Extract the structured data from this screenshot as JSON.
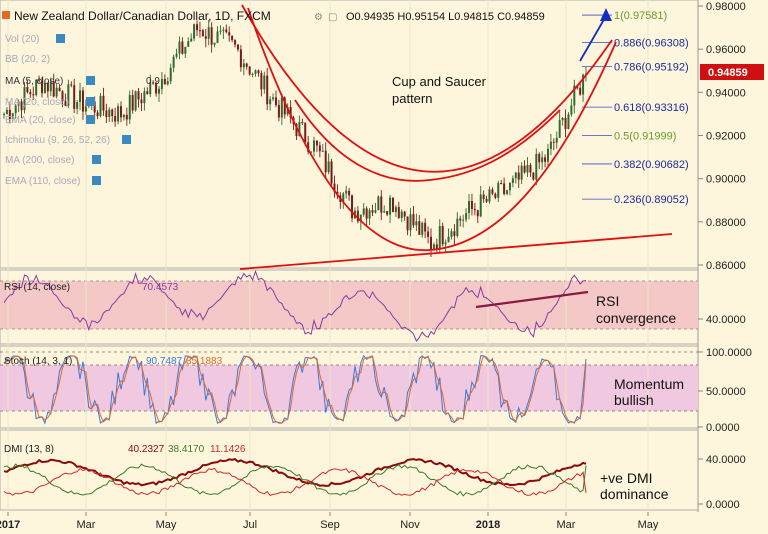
{
  "colors": {
    "background": "#fdf5dc",
    "panel_border": "#9a9a9a",
    "candle_up": "#2f6b2f",
    "candle_down": "#7a1a1a",
    "trendline": "#e01010",
    "fib_text": "#1a2c9a",
    "fib_line": "#3a4cc9",
    "fib_text_alt": "#6a9a2a",
    "arrow": "#1030c0",
    "rsi_band": "#f5c8c8",
    "rsi_line": "#8a3aa0",
    "rsi_trend": "#8a1840",
    "stoch_band": "#f0c8e0",
    "stoch_k": "#3a7adf",
    "stoch_d": "#e06a2a",
    "dmi_adx": "#8a0a0a",
    "dmi_plus": "#3a7a2a",
    "dmi_minus": "#d02a2a",
    "price_tag": "#d01010",
    "icon_box": "#3a8ac0"
  },
  "header": {
    "title": "New Zealand Dollar/Canadian Dollar, 1D, FXCM",
    "ohlc": "O0.94935  H0.95154  L0.94815  C0.94859"
  },
  "legends": {
    "vol": "Vol (20)",
    "bb": "BB (20, 2)",
    "ma5": "MA (5, close)",
    "ma5_value": "0.9",
    "ma20": "MA (20, close)",
    "ema20": "EMA (20, close)",
    "ichimoku": "Ichimoku (9, 26, 52, 26)",
    "ma200": "MA (200, close)",
    "ema110": "EMA (110, close)",
    "rsi": "RSI (14, close)",
    "rsi_value": "70.4573",
    "stoch": "Stoch (14, 3, 1)",
    "stoch_k": "90.7487",
    "stoch_d": "85.1883",
    "dmi": "DMI (13, 8)",
    "dmi_adx": "40.2327",
    "dmi_plus": "38.4170",
    "dmi_minus": "11.1426"
  },
  "annotations": {
    "cup_line1": "Cup and Saucer",
    "cup_line2": "pattern",
    "rsi_line1": "RSI",
    "rsi_line2": "convergence",
    "stoch_line1": "Momentum",
    "stoch_line2": "bullish",
    "dmi_line1": "+ve DMI",
    "dmi_line2": "dominance"
  },
  "fib_levels": [
    {
      "label": "1(0.97581)",
      "value": 0.97581
    },
    {
      "label": "0.886(0.96308)",
      "value": 0.96308
    },
    {
      "label": "0.786(0.95192)",
      "value": 0.95192
    },
    {
      "label": "0.618(0.93316)",
      "value": 0.93316
    },
    {
      "label": "0.5(0.91999)",
      "value": 0.91999
    },
    {
      "label": "0.382(0.90682)",
      "value": 0.90682
    },
    {
      "label": "0.236(0.89052)",
      "value": 0.89052
    }
  ],
  "price_tag": "0.94859",
  "chart_data": {
    "type": "candlestick",
    "title": "New Zealand Dollar/Canadian Dollar, 1D, FXCM",
    "last_close": 0.94859,
    "price_axis": {
      "ticks": [
        "0.98000",
        "0.96000",
        "0.94000",
        "0.92000",
        "0.90000",
        "0.88000",
        "0.86000"
      ],
      "range": [
        0.855,
        0.983
      ]
    },
    "time_axis": {
      "labels": [
        "2017",
        "Mar",
        "May",
        "Jul",
        "Sep",
        "Nov",
        "2018",
        "Mar",
        "May"
      ]
    },
    "approx_close_path": {
      "dates": [
        "2017-01",
        "2017-02",
        "2017-03",
        "2017-04",
        "2017-05",
        "2017-06",
        "2017-06-20",
        "2017-07",
        "2017-08",
        "2017-09",
        "2017-10",
        "2017-11",
        "2017-12",
        "2018-01",
        "2018-02",
        "2018-03"
      ],
      "close": [
        0.93,
        0.945,
        0.935,
        0.93,
        0.945,
        0.97,
        0.96,
        0.935,
        0.915,
        0.885,
        0.89,
        0.87,
        0.885,
        0.895,
        0.91,
        0.949
      ]
    },
    "rsi": {
      "name": "RSI (14, close)",
      "last": 70.4573,
      "ticks": [
        "40.0000"
      ],
      "band": [
        30,
        70
      ]
    },
    "stoch": {
      "name": "Stoch (14, 3, 1)",
      "k_last": 90.7487,
      "d_last": 85.1883,
      "ticks": [
        "100.0000",
        "50.0000",
        "0.0000"
      ],
      "band": [
        20,
        80
      ]
    },
    "dmi": {
      "name": "DMI (13, 8)",
      "adx_last": 40.2327,
      "plus_di_last": 38.417,
      "minus_di_last": 11.1426,
      "ticks": [
        "40.0000",
        "0.0000"
      ]
    }
  }
}
